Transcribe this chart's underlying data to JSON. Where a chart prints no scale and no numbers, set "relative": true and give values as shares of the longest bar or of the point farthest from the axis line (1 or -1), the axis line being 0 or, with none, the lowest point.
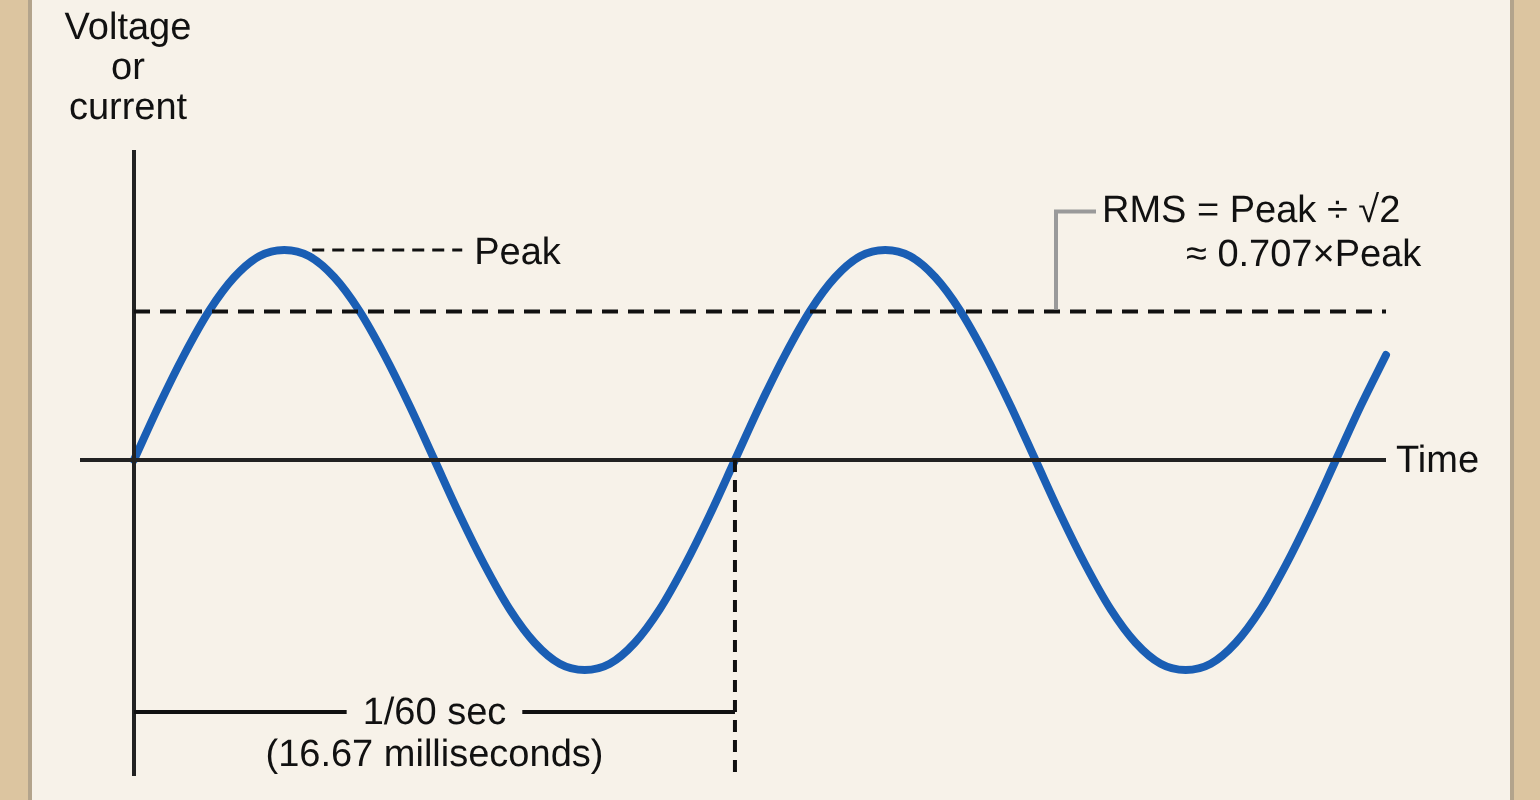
{
  "chart_data": {
    "type": "line",
    "relative": true,
    "ylabel": "Voltage or current",
    "xlabel": "Time",
    "marker": "none",
    "categories": [
      null,
      null,
      null,
      null,
      null,
      null,
      null,
      null,
      null,
      null,
      null,
      null,
      null,
      null,
      null,
      null,
      null,
      null,
      null,
      null,
      null,
      null,
      null,
      null,
      null,
      null,
      null,
      null,
      null,
      null,
      null,
      null,
      null,
      null,
      null,
      null,
      null,
      null,
      null,
      null,
      null,
      null,
      null,
      null,
      null,
      null,
      null,
      null,
      null,
      null,
      null
    ],
    "series": [
      {
        "color": "#1a5eb4",
        "line_style": "solid",
        "values": [
          0,
          0.26,
          0.5,
          0.71,
          0.87,
          0.97,
          1,
          0.97,
          0.87,
          0.71,
          0.5,
          0.26,
          0,
          -0.26,
          -0.5,
          -0.71,
          -0.87,
          -0.97,
          -1,
          -0.97,
          -0.87,
          -0.71,
          -0.5,
          -0.26,
          0,
          0.26,
          0.5,
          0.71,
          0.87,
          0.97,
          1,
          0.97,
          0.87,
          0.71,
          0.5,
          0.26,
          0,
          -0.26,
          -0.5,
          -0.71,
          -0.87,
          -0.97,
          -1,
          -0.97,
          -0.87,
          -0.71,
          -0.5,
          -0.26,
          0,
          0.26,
          0.5
        ]
      }
    ],
    "ref_lines": [
      {
        "axis": "y",
        "value": 0.707,
        "label": "RMS = Peak ÷ √2\n≈ 0.707×Peak",
        "color": "#111111",
        "line_style": "dashed"
      }
    ],
    "annotations": [
      "Peak",
      "1/60 sec\n(16.67 milliseconds)"
    ]
  }
}
